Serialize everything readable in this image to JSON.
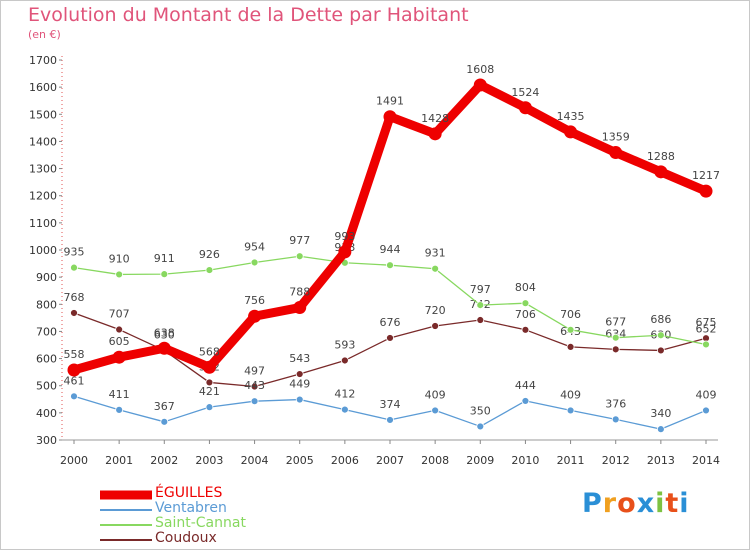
{
  "header": {
    "title": "Evolution du Montant de la Dette par Habitant",
    "subtitle": "(en €)"
  },
  "logo": {
    "text": "Proxiti",
    "colors": [
      "#2a8fd6",
      "#f0a020",
      "#e8501a",
      "#2a8fd6",
      "#7dc242",
      "#e8501a",
      "#2a8fd6"
    ]
  },
  "chart_data": {
    "type": "line",
    "title": "Evolution du Montant de la Dette par Habitant",
    "subtitle": "(en €)",
    "xlabel": "",
    "ylabel": "",
    "x": [
      "2000",
      "2001",
      "2002",
      "2003",
      "2004",
      "2005",
      "2006",
      "2007",
      "2008",
      "2009",
      "2010",
      "2011",
      "2012",
      "2013",
      "2014"
    ],
    "ylim": [
      300,
      1700
    ],
    "yticks": [
      300,
      400,
      500,
      600,
      700,
      800,
      900,
      1000,
      1100,
      1200,
      1300,
      1400,
      1500,
      1600,
      1700
    ],
    "grid": false,
    "legend": "bottom-left",
    "series": [
      {
        "name": "Coudoux",
        "color": "#7a2a2a",
        "values": [
          768,
          707,
          630,
          512,
          497,
          543,
          593,
          676,
          720,
          742,
          706,
          643,
          634,
          630,
          675
        ]
      },
      {
        "name": "Saint-Cannat",
        "color": "#88d860",
        "values": [
          935,
          910,
          911,
          926,
          954,
          977,
          953,
          944,
          931,
          797,
          804,
          706,
          677,
          686,
          652
        ]
      },
      {
        "name": "Ventabren",
        "color": "#5b9bd5",
        "values": [
          461,
          411,
          367,
          421,
          443,
          449,
          412,
          374,
          409,
          350,
          444,
          409,
          376,
          340,
          409
        ]
      },
      {
        "name": "ÉGUILLES",
        "color": "#ee0000",
        "values": [
          558,
          605,
          638,
          568,
          756,
          788,
          993,
          1491,
          1428,
          1608,
          1524,
          1435,
          1359,
          1288,
          1217
        ]
      }
    ]
  }
}
